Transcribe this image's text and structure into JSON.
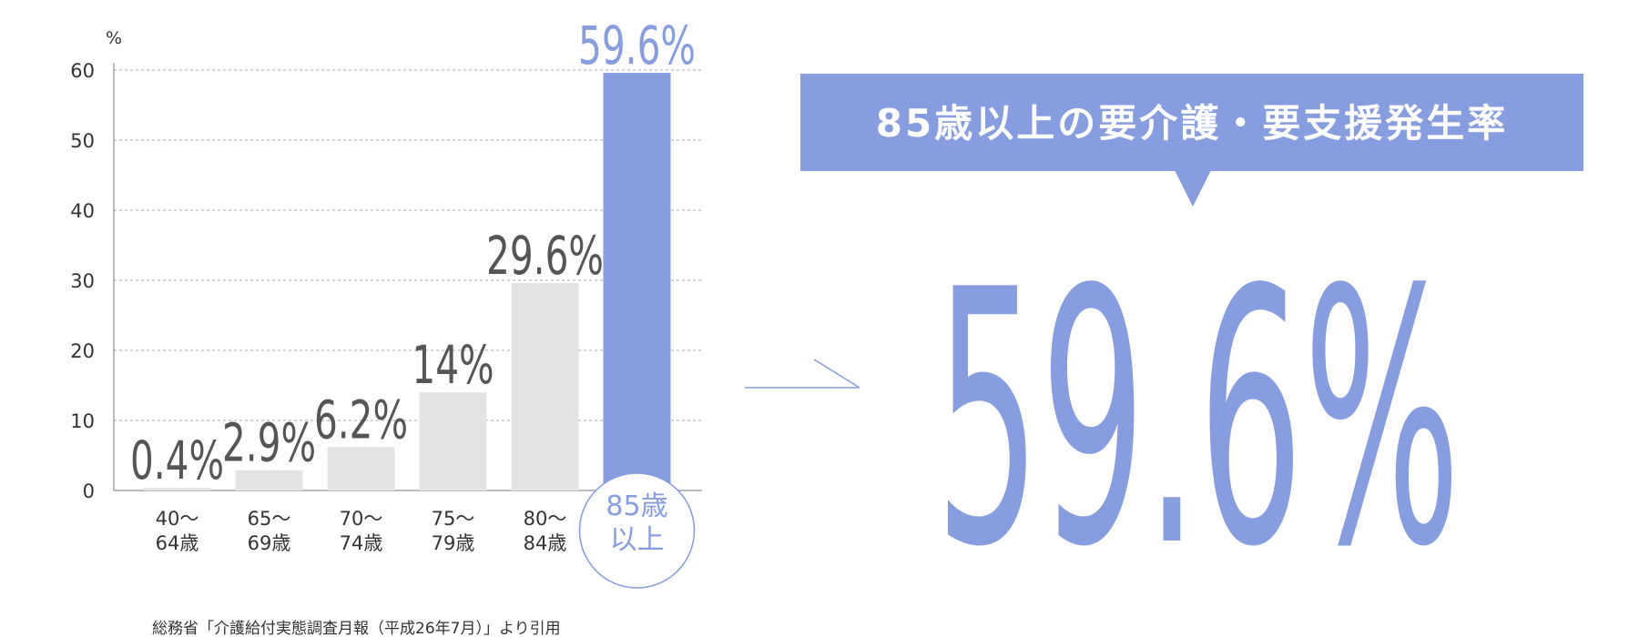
{
  "chart_data": {
    "type": "bar",
    "y_unit": "%",
    "categories": [
      "40～\n64歳",
      "65～\n69歳",
      "70～\n74歳",
      "75～\n79歳",
      "80～\n84歳",
      "85歳\n以上"
    ],
    "values": [
      0.4,
      2.9,
      6.2,
      14,
      29.6,
      59.6
    ],
    "value_labels": [
      "0.4%",
      "2.9%",
      "6.2%",
      "14%",
      "29.6%",
      "59.6%"
    ],
    "colors": [
      "#e4e4e3",
      "#e4e4e3",
      "#e4e4e3",
      "#e4e4e3",
      "#e4e4e3",
      "#869ddf"
    ],
    "label_colors": [
      "#555555",
      "#555555",
      "#555555",
      "#555555",
      "#555555",
      "#869ddf"
    ],
    "ylim": [
      0,
      60
    ],
    "yticks": [
      0,
      10,
      20,
      30,
      40,
      50,
      60
    ],
    "grid": true
  },
  "callout": {
    "title": "85歳以上の要介護・要支援発生率",
    "text": "59.6%",
    "color": "#869ddf"
  },
  "source": "総務省「介護給付実態調査月報（平成26年7月）」より引用"
}
